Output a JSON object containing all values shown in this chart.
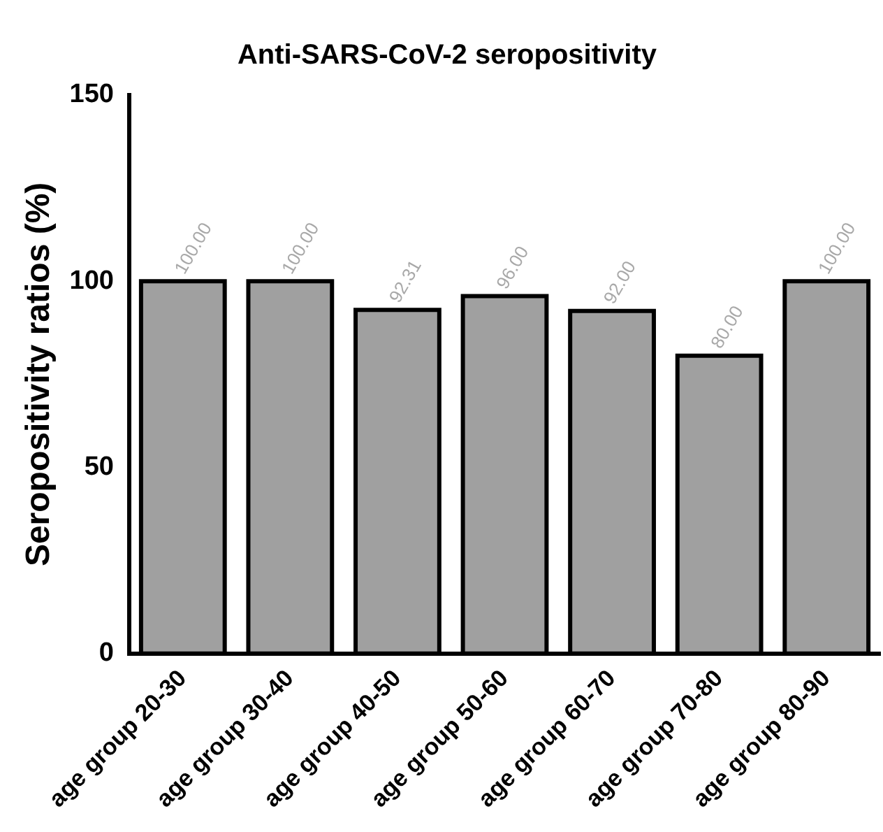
{
  "chart_data": {
    "type": "bar",
    "title": "Anti-SARS-CoV-2 seropositivity",
    "ylabel": "Seropositivity ratios (%)",
    "categories": [
      "age group 20-30",
      "age group 30-40",
      "age group 40-50",
      "age group 50-60",
      "age group 60-70",
      "age group 70-80",
      "age group 80-90"
    ],
    "values": [
      100,
      100,
      92.31,
      96,
      92,
      80,
      100
    ],
    "value_labels": [
      "100.00",
      "100.00",
      "92.31",
      "96.00",
      "92.00",
      "80.00",
      "100.00"
    ],
    "color": "#a0a0a0",
    "ylim": [
      0,
      150
    ],
    "yticks": [
      0,
      50,
      100,
      150
    ],
    "grid": false,
    "legend": false
  }
}
